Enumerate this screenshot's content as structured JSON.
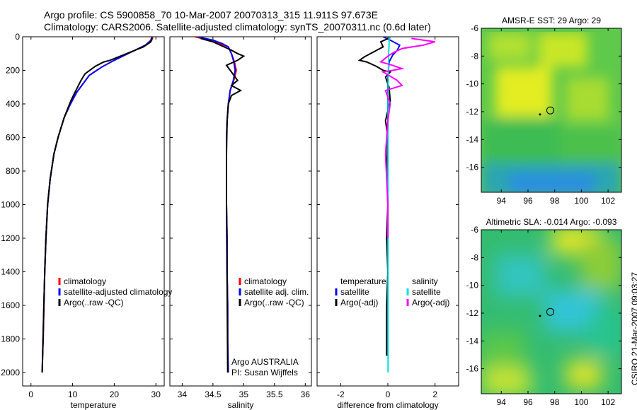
{
  "header": {
    "line1": "Argo profile: CS 5900858_70 10-Mar-2007 20070313_315 11.911S 97.673E",
    "line2": "Climatology: CARS2006. Satellite-adjusted climatology: synTS_20070311.nc (0.6d later)"
  },
  "footer": {
    "stamp": "CSIRO 21-Mar-2007 09:03:27"
  },
  "colors": {
    "climatology": "#ff0000",
    "satellite": "#0000ff",
    "argo": "#000000",
    "sat_diff": "#00e0e0",
    "argo_adj": "#ff00ff"
  },
  "chart_data": [
    {
      "id": "temperature",
      "type": "line",
      "xlabel": "temperature",
      "ylabel": "",
      "xlim": [
        -2,
        32
      ],
      "ylim": [
        2080,
        0
      ],
      "xticks": [
        0,
        10,
        20,
        30
      ],
      "yticks": [
        0,
        200,
        400,
        600,
        800,
        1000,
        1200,
        1400,
        1600,
        1800,
        2000
      ],
      "legend": [
        "climatology",
        "satellite-adjusted climatology",
        "Argo(..raw -QC)"
      ],
      "series": [
        {
          "name": "climatology",
          "color": "#ff0000",
          "x": [
            29.3,
            29.0,
            27.5,
            25,
            22.5,
            20,
            17,
            14,
            12.5,
            11,
            9.5,
            8,
            6.5,
            5.5,
            4.6,
            4.0,
            3.6,
            3.3,
            3.1,
            2.95,
            2.8
          ],
          "y": [
            0,
            20,
            50,
            80,
            110,
            140,
            180,
            230,
            280,
            330,
            400,
            480,
            600,
            700,
            850,
            1000,
            1200,
            1400,
            1600,
            1800,
            1900
          ]
        },
        {
          "name": "satellite-adjusted climatology",
          "color": "#0000ff",
          "x": [
            29.0,
            28.8,
            27.5,
            25,
            22.5,
            20,
            17,
            14,
            12.5,
            11,
            9.5,
            8,
            6.5,
            5.5,
            4.6,
            4.0,
            3.6,
            3.3,
            3.1,
            2.9,
            2.7
          ],
          "y": [
            0,
            20,
            50,
            80,
            110,
            140,
            180,
            230,
            280,
            330,
            400,
            480,
            600,
            700,
            850,
            1000,
            1200,
            1400,
            1600,
            1800,
            2000
          ]
        },
        {
          "name": "Argo(..raw -QC)",
          "color": "#000000",
          "x": [
            29.1,
            28.8,
            27.0,
            24.0,
            21.0,
            19.0,
            17.5,
            15.5,
            13.0,
            12.0,
            11.2,
            9.6,
            8,
            6.5,
            5.5,
            4.6,
            4.0,
            3.6,
            3.3,
            3.1,
            2.9,
            2.7
          ],
          "y": [
            5,
            30,
            60,
            90,
            120,
            140,
            150,
            175,
            220,
            260,
            300,
            380,
            480,
            600,
            700,
            850,
            1000,
            1200,
            1400,
            1600,
            1800,
            2000
          ]
        }
      ]
    },
    {
      "id": "salinity",
      "type": "line",
      "xlabel": "salinity",
      "xlim": [
        33.8,
        36.1
      ],
      "ylim": [
        2080,
        0
      ],
      "xticks": [
        34,
        34.5,
        35,
        35.5,
        36
      ],
      "legend": [
        "climatology",
        "satellite adj. clim.",
        "Argo(..raw -QC)"
      ],
      "annotations": [
        "Argo AUSTRALIA",
        "PI: Susan Wijffels"
      ],
      "series": [
        {
          "name": "climatology",
          "color": "#ff0000",
          "x": [
            34.2,
            34.45,
            34.6,
            34.75,
            34.8,
            34.85,
            34.88,
            34.84,
            34.78,
            34.75,
            34.73,
            34.72,
            34.72,
            34.72,
            34.73,
            34.73,
            34.74,
            34.74,
            34.74
          ],
          "y": [
            0,
            20,
            40,
            60,
            100,
            150,
            200,
            260,
            320,
            400,
            500,
            600,
            800,
            1000,
            1200,
            1400,
            1600,
            1800,
            1950
          ]
        },
        {
          "name": "satellite adj. clim.",
          "color": "#0000ff",
          "x": [
            34.25,
            34.5,
            34.65,
            34.75,
            34.8,
            34.84,
            34.86,
            34.83,
            34.78,
            34.75,
            34.73,
            34.72,
            34.72,
            34.72,
            34.73,
            34.73,
            34.74,
            34.74,
            34.75
          ],
          "y": [
            0,
            20,
            40,
            60,
            100,
            150,
            200,
            260,
            320,
            400,
            500,
            600,
            800,
            1000,
            1200,
            1400,
            1600,
            1800,
            2000
          ]
        },
        {
          "name": "Argo(..raw -QC)",
          "color": "#000000",
          "x": [
            34.3,
            34.5,
            34.65,
            34.8,
            34.9,
            35.0,
            34.9,
            34.72,
            34.8,
            34.9,
            34.8,
            34.95,
            34.8,
            34.75,
            34.73,
            34.72,
            34.72,
            34.73,
            34.74
          ],
          "y": [
            10,
            30,
            55,
            80,
            100,
            115,
            140,
            170,
            210,
            260,
            290,
            320,
            350,
            400,
            500,
            700,
            1000,
            1500,
            2000
          ]
        }
      ]
    },
    {
      "id": "difference",
      "type": "line",
      "xlabel": "difference from climatology",
      "xlim": [
        -3,
        3
      ],
      "ylim": [
        2080,
        0
      ],
      "xticks": [
        -2,
        0,
        2
      ],
      "legend_left": [
        "temperature",
        "satellite",
        "Argo(-adj)"
      ],
      "legend_right": [
        "salinity",
        "satellite",
        "Argo(-adj)"
      ],
      "series": [
        {
          "name": "temperature satellite",
          "color": "#0000ff",
          "x": [
            -0.2,
            0.1,
            0.5,
            0.4,
            0.2,
            0.05,
            0,
            0,
            0,
            0
          ],
          "y": [
            0,
            20,
            50,
            80,
            110,
            150,
            250,
            600,
            1200,
            1900
          ]
        },
        {
          "name": "temperature Argo(-adj)",
          "color": "#000000",
          "x": [
            0.1,
            -0.3,
            -0.2,
            -0.6,
            -1.0,
            -1.2,
            -0.9,
            -0.5,
            -0.2,
            0.1,
            -0.1,
            0.05,
            0.1,
            -0.1,
            0,
            -0.05,
            0,
            -0.05,
            0,
            -0.05,
            -0.05
          ],
          "y": [
            5,
            30,
            60,
            90,
            120,
            140,
            150,
            175,
            200,
            210,
            240,
            300,
            380,
            500,
            600,
            800,
            1000,
            1200,
            1400,
            1600,
            1900
          ]
        },
        {
          "name": "salinity satellite",
          "color": "#00e0e0",
          "x": [
            0.05,
            0.05,
            0.03,
            0.03,
            0.02,
            0.01,
            0.01,
            0.01,
            0.01,
            0.01,
            0.01,
            0.01,
            0.01
          ],
          "y": [
            0,
            50,
            100,
            150,
            200,
            300,
            400,
            600,
            800,
            1000,
            1400,
            1800,
            2000
          ]
        },
        {
          "name": "salinity Argo(-adj)",
          "color": "#ff00ff",
          "x": [
            1.0,
            2.0,
            1.5,
            0.6,
            0.3,
            0.05,
            -0.3,
            0.2,
            0.6,
            -0.2,
            0.4,
            0.6,
            -0.1,
            0.1,
            0,
            -0.1,
            0,
            0
          ],
          "y": [
            10,
            30,
            50,
            70,
            90,
            110,
            150,
            170,
            190,
            210,
            260,
            290,
            320,
            400,
            500,
            700,
            1000,
            1200
          ]
        }
      ]
    },
    {
      "id": "sst-map",
      "type": "heatmap",
      "title": "AMSR-E SST: 29 Argo: 29",
      "xlim": [
        92.5,
        103
      ],
      "ylim": [
        -17.8,
        -6
      ],
      "xticks": [
        94,
        96,
        98,
        100,
        102
      ],
      "yticks": [
        -6,
        -8,
        -10,
        -12,
        -14,
        -16
      ],
      "float_position": [
        97.67,
        -11.91
      ],
      "prior_position": [
        96.9,
        -12.2
      ]
    },
    {
      "id": "sla-map",
      "type": "heatmap",
      "title": "Altimetric SLA: -0.014 Argo: -0.093",
      "xlim": [
        92.5,
        103
      ],
      "ylim": [
        -17.8,
        -6
      ],
      "xticks": [
        94,
        96,
        98,
        100,
        102
      ],
      "yticks": [
        -6,
        -8,
        -10,
        -12,
        -14,
        -16
      ],
      "float_position": [
        97.67,
        -11.91
      ],
      "prior_position": [
        96.9,
        -12.2
      ]
    }
  ]
}
